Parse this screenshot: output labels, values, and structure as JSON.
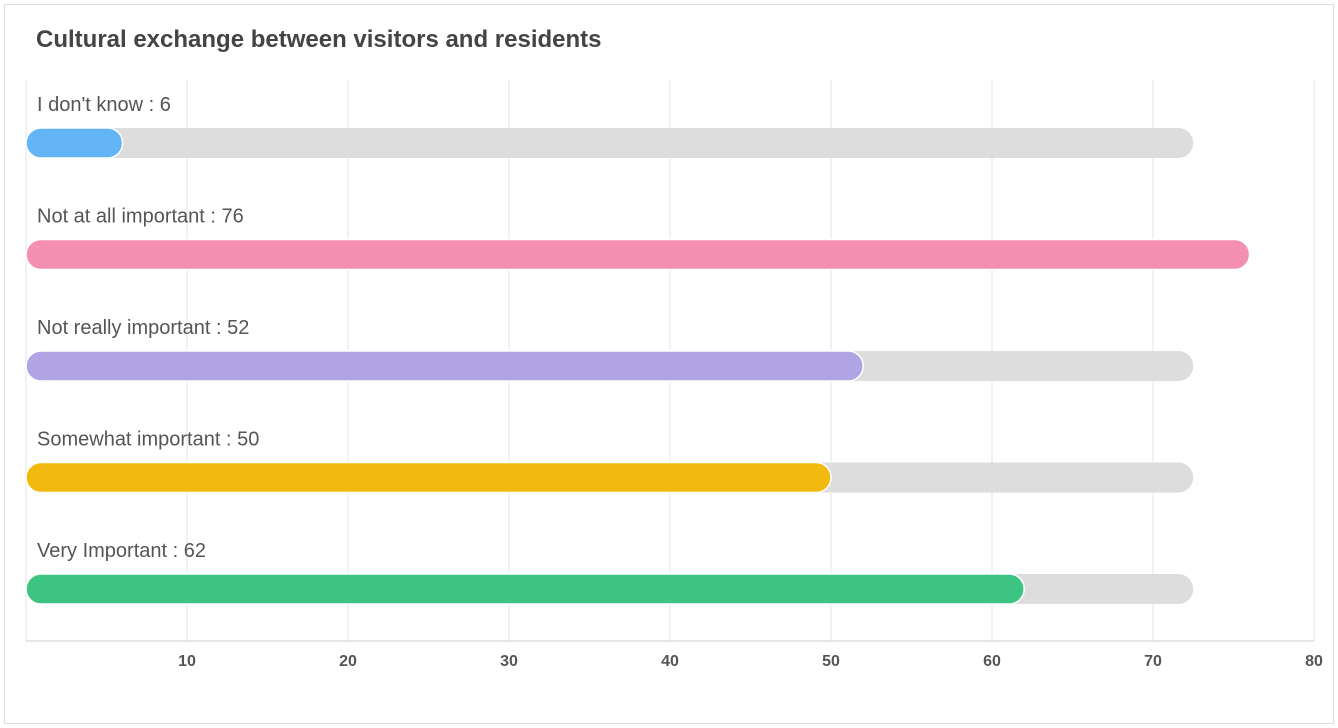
{
  "chart_data": {
    "type": "bar",
    "orientation": "horizontal",
    "title": "Cultural exchange between visitors and residents",
    "categories": [
      "I don't know",
      "Not at all important",
      "Not really important",
      "Somewhat important",
      "Very Important"
    ],
    "values": [
      6,
      76,
      52,
      50,
      62
    ],
    "label_separator": " : ",
    "colors": [
      "#64b5f6",
      "#f48fb1",
      "#b0a4e4",
      "#f2b90f",
      "#3ec482"
    ],
    "track_color": "#dddddd",
    "track_value": 72.5,
    "xlim": [
      0,
      80
    ],
    "xticks": [
      10,
      20,
      30,
      40,
      50,
      60,
      70,
      80
    ],
    "grid": true,
    "legend": "none"
  }
}
